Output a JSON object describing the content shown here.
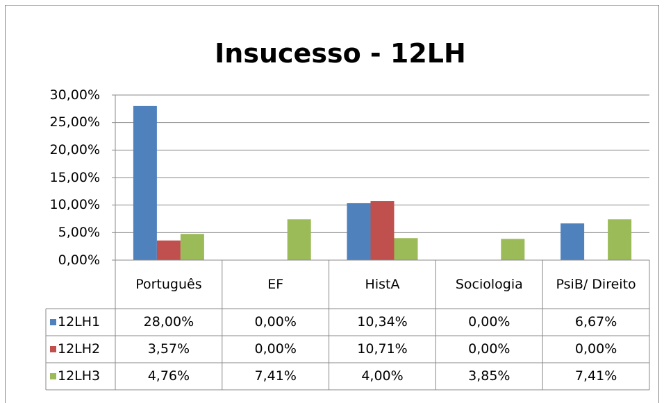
{
  "chart_data": {
    "type": "bar",
    "title": "Insucesso - 12LH",
    "categories": [
      "Português",
      "EF",
      "HistA",
      "Sociologia",
      "PsiB/ Direito"
    ],
    "series": [
      {
        "name": "12LH1",
        "color": "#4f81bd",
        "values": [
          28,
          0,
          10.34,
          0,
          6.67
        ],
        "value_labels": [
          "28,00%",
          "0,00%",
          "10,34%",
          "0,00%",
          "6,67%"
        ]
      },
      {
        "name": "12LH2",
        "color": "#c0504d",
        "values": [
          3.57,
          0,
          10.71,
          0,
          0
        ],
        "value_labels": [
          "3,57%",
          "0,00%",
          "10,71%",
          "0,00%",
          "0,00%"
        ]
      },
      {
        "name": "12LH3",
        "color": "#9bbb59",
        "values": [
          4.76,
          7.41,
          4,
          3.85,
          7.41
        ],
        "value_labels": [
          "4,76%",
          "7,41%",
          "4,00%",
          "3,85%",
          "7,41%"
        ]
      }
    ],
    "ylim": [
      0,
      30
    ],
    "yticks": [
      {
        "value": 0,
        "label": "0,00%"
      },
      {
        "value": 5,
        "label": "5,00%"
      },
      {
        "value": 10,
        "label": "10,00%"
      },
      {
        "value": 15,
        "label": "15,00%"
      },
      {
        "value": 20,
        "label": "20,00%"
      },
      {
        "value": 25,
        "label": "25,00%"
      },
      {
        "value": 30,
        "label": "30,00%"
      }
    ],
    "grid": true
  }
}
